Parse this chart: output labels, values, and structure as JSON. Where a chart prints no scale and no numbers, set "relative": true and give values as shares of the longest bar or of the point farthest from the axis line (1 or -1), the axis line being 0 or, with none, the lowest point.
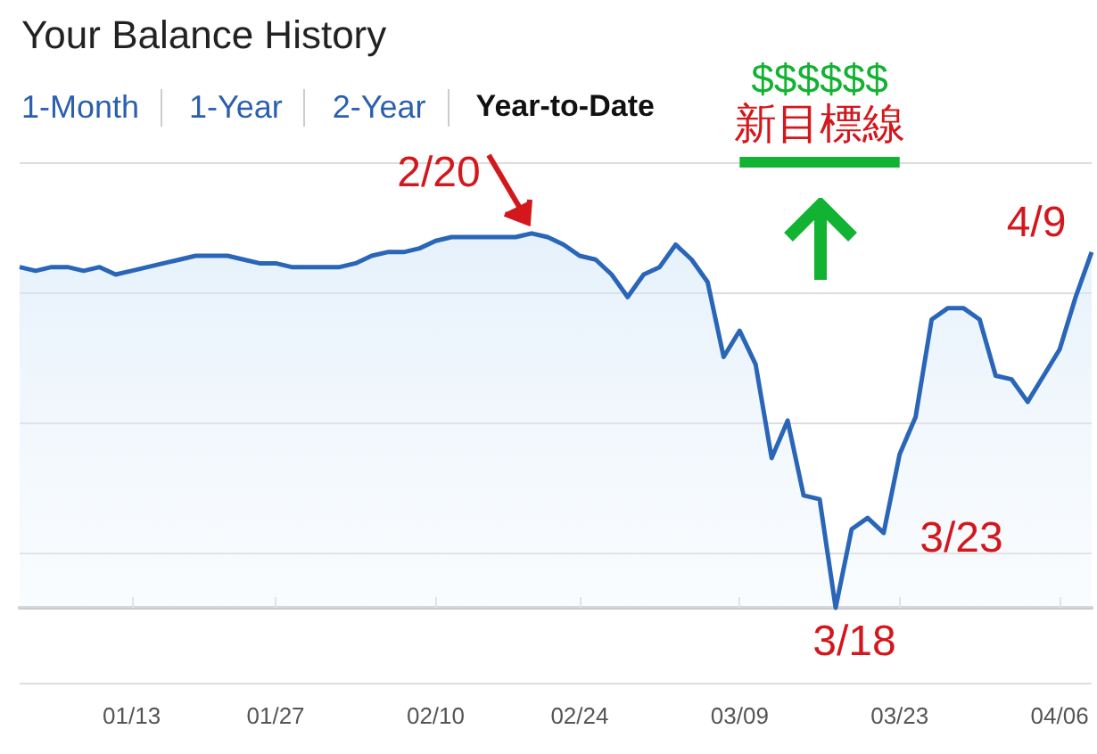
{
  "chart_data": {
    "type": "area",
    "title": "Your Balance History",
    "relative": true,
    "categories": [
      null,
      null,
      null,
      null,
      null,
      null,
      null,
      "01/13",
      null,
      null,
      null,
      null,
      null,
      null,
      null,
      null,
      "01/27",
      null,
      null,
      null,
      null,
      null,
      null,
      null,
      null,
      null,
      "02/10",
      null,
      null,
      null,
      null,
      null,
      null,
      null,
      null,
      "02/24",
      null,
      null,
      null,
      null,
      null,
      null,
      null,
      null,
      null,
      "03/09",
      null,
      null,
      null,
      null,
      null,
      null,
      null,
      null,
      null,
      "03/23",
      null,
      null,
      null,
      null,
      null,
      null,
      null,
      null,
      null,
      "04/06",
      null,
      null
    ],
    "values": [
      0.91,
      0.9,
      0.91,
      0.91,
      0.9,
      0.91,
      0.89,
      0.9,
      0.91,
      0.92,
      0.93,
      0.94,
      0.94,
      0.94,
      0.93,
      0.92,
      0.92,
      0.91,
      0.91,
      0.91,
      0.91,
      0.92,
      0.94,
      0.95,
      0.95,
      0.96,
      0.98,
      0.99,
      0.99,
      0.99,
      0.99,
      0.99,
      1,
      0.99,
      0.97,
      0.94,
      0.93,
      0.89,
      0.83,
      0.89,
      0.91,
      0.97,
      0.93,
      0.87,
      0.67,
      0.74,
      0.65,
      0.4,
      0.5,
      0.3,
      0.29,
      0,
      0.21,
      0.24,
      0.2,
      0.41,
      0.51,
      0.77,
      0.8,
      0.8,
      0.77,
      0.62,
      0.61,
      0.55,
      0.62,
      0.69,
      0.83,
      0.95
    ],
    "color": "#2a66b8",
    "marker": "none",
    "line_style": "solid",
    "grid": "y",
    "tick_labels": "x",
    "ref_lines": [
      {
        "axis": "y",
        "value": 1.19,
        "label": "$$$$$$\n新目標線",
        "color": "#12b232"
      }
    ],
    "annotations": [
      "1-Month",
      "1-Year",
      "2-Year",
      "Year-to-Date",
      "2/20",
      "3/18",
      "3/23",
      "4/9"
    ]
  }
}
